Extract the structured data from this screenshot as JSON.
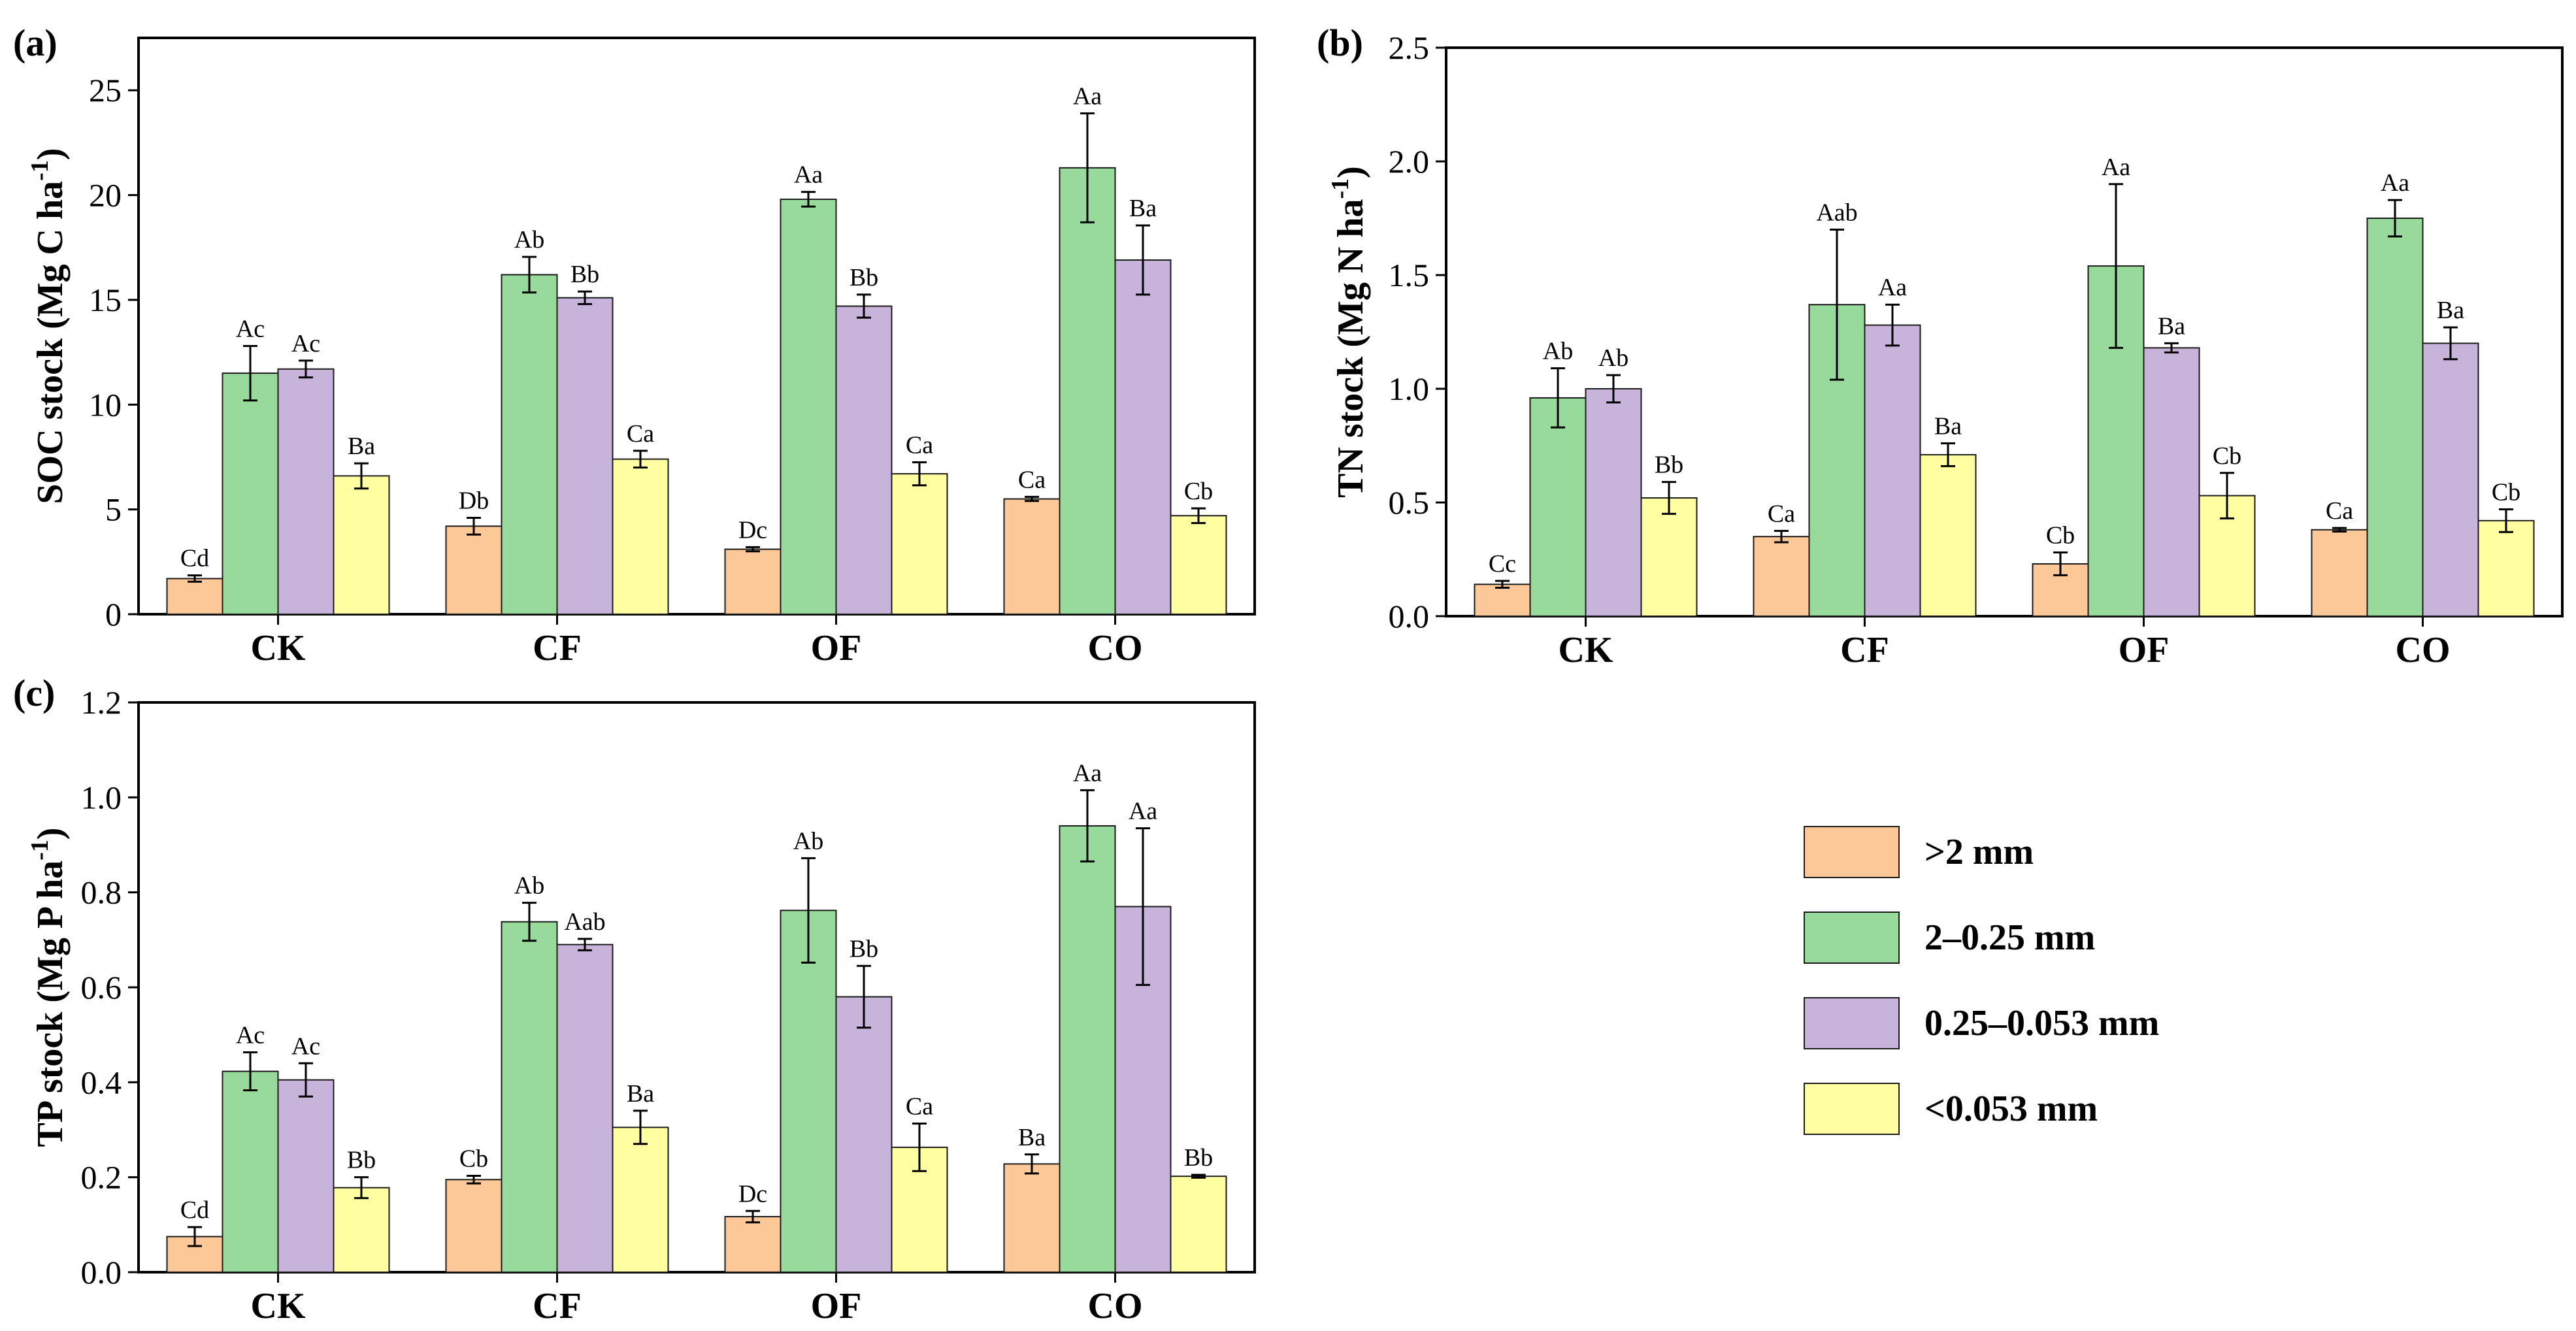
{
  "colors": {
    "gt2": "#FDC897",
    "mid": "#98DA9C",
    "small": "#C8B3DB",
    "lt0053": "#FFFFA2"
  },
  "chart_data": [
    {
      "type": "bar",
      "panel": "(a)",
      "ylabel": "SOC stock (Mg C ha",
      "ylabel_sup": "-1",
      "ylabel_end": ")",
      "ylim": [
        0,
        27.5
      ],
      "yticks": [
        "0",
        "5",
        "10",
        "15",
        "20",
        "25"
      ],
      "ytick_values": [
        0,
        5,
        10,
        15,
        20,
        25
      ],
      "categories": [
        "CK",
        "CF",
        "OF",
        "CO"
      ],
      "series": [
        {
          "name": ">2 mm",
          "values": [
            1.7,
            4.2,
            3.1,
            5.5
          ],
          "errors": [
            0.15,
            0.4,
            0.1,
            0.1
          ],
          "labels": [
            "Cd",
            "Db",
            "Dc",
            "Ca"
          ]
        },
        {
          "name": "2–0.25 mm",
          "values": [
            11.5,
            16.2,
            19.8,
            21.3
          ],
          "errors": [
            1.3,
            0.85,
            0.35,
            2.6
          ],
          "labels": [
            "Ac",
            "Ab",
            "Aa",
            "Aa"
          ]
        },
        {
          "name": "0.25–0.053 mm",
          "values": [
            11.7,
            15.1,
            14.7,
            16.9
          ],
          "errors": [
            0.4,
            0.3,
            0.55,
            1.65
          ],
          "labels": [
            "Ac",
            "Bb",
            "Bb",
            "Ba"
          ]
        },
        {
          "name": "<0.053 mm",
          "values": [
            6.6,
            7.4,
            6.7,
            4.7
          ],
          "errors": [
            0.6,
            0.4,
            0.55,
            0.35
          ],
          "labels": [
            "Ba",
            "Ca",
            "Ca",
            "Cb"
          ]
        }
      ]
    },
    {
      "type": "bar",
      "panel": "(b)",
      "ylabel": "TN stock (Mg N ha",
      "ylabel_sup": "-1",
      "ylabel_end": ")",
      "ylim": [
        0,
        2.5
      ],
      "yticks": [
        "0.0",
        "0.5",
        "1.0",
        "1.5",
        "2.0",
        "2.5"
      ],
      "ytick_values": [
        0,
        0.5,
        1.0,
        1.5,
        2.0,
        2.5
      ],
      "categories": [
        "CK",
        "CF",
        "OF",
        "CO"
      ],
      "series": [
        {
          "name": ">2 mm",
          "values": [
            0.14,
            0.35,
            0.23,
            0.38
          ],
          "errors": [
            0.015,
            0.025,
            0.05,
            0.008
          ],
          "labels": [
            "Cc",
            "Ca",
            "Cb",
            "Ca"
          ]
        },
        {
          "name": "2–0.25 mm",
          "values": [
            0.96,
            1.37,
            1.54,
            1.75
          ],
          "errors": [
            0.13,
            0.33,
            0.36,
            0.08
          ],
          "labels": [
            "Ab",
            "Aab",
            "Aa",
            "Aa"
          ]
        },
        {
          "name": "0.25–0.053 mm",
          "values": [
            1.0,
            1.28,
            1.18,
            1.2
          ],
          "errors": [
            0.06,
            0.09,
            0.02,
            0.07
          ],
          "labels": [
            "Ab",
            "Aa",
            "Ba",
            "Ba"
          ]
        },
        {
          "name": "<0.053 mm",
          "values": [
            0.52,
            0.71,
            0.53,
            0.42
          ],
          "errors": [
            0.07,
            0.05,
            0.1,
            0.05
          ],
          "labels": [
            "Bb",
            "Ba",
            "Cb",
            "Cb"
          ]
        }
      ]
    },
    {
      "type": "bar",
      "panel": "(c)",
      "ylabel": "TP stock (Mg P ha",
      "ylabel_sup": "-1",
      "ylabel_end": ")",
      "ylim": [
        0,
        1.2
      ],
      "yticks": [
        "0.0",
        "0.2",
        "0.4",
        "0.6",
        "0.8",
        "1.0",
        "1.2"
      ],
      "ytick_values": [
        0,
        0.2,
        0.4,
        0.6,
        0.8,
        1.0,
        1.2
      ],
      "categories": [
        "CK",
        "CF",
        "OF",
        "CO"
      ],
      "series": [
        {
          "name": ">2 mm",
          "values": [
            0.075,
            0.195,
            0.117,
            0.228
          ],
          "errors": [
            0.02,
            0.008,
            0.012,
            0.02
          ],
          "labels": [
            "Cd",
            "Cb",
            "Dc",
            "Ba"
          ]
        },
        {
          "name": "2–0.25 mm",
          "values": [
            0.423,
            0.738,
            0.762,
            0.94
          ],
          "errors": [
            0.04,
            0.04,
            0.11,
            0.075
          ],
          "labels": [
            "Ac",
            "Ab",
            "Ab",
            "Aa"
          ]
        },
        {
          "name": "0.25–0.053 mm",
          "values": [
            0.405,
            0.69,
            0.58,
            0.77
          ],
          "errors": [
            0.035,
            0.012,
            0.065,
            0.165
          ],
          "labels": [
            "Ac",
            "Aab",
            "Bb",
            "Aa"
          ]
        },
        {
          "name": "<0.053 mm",
          "values": [
            0.178,
            0.305,
            0.263,
            0.202
          ],
          "errors": [
            0.022,
            0.035,
            0.05,
            0.003
          ],
          "labels": [
            "Bb",
            "Ba",
            "Ca",
            "Bb"
          ]
        }
      ]
    }
  ],
  "legend": {
    "items": [
      {
        "label": ">2 mm",
        "color_key": "gt2"
      },
      {
        "label": "2–0.25 mm",
        "color_key": "mid"
      },
      {
        "label": "0.25–0.053 mm",
        "color_key": "small"
      },
      {
        "label": "<0.053 mm",
        "color_key": "lt0053"
      }
    ]
  }
}
